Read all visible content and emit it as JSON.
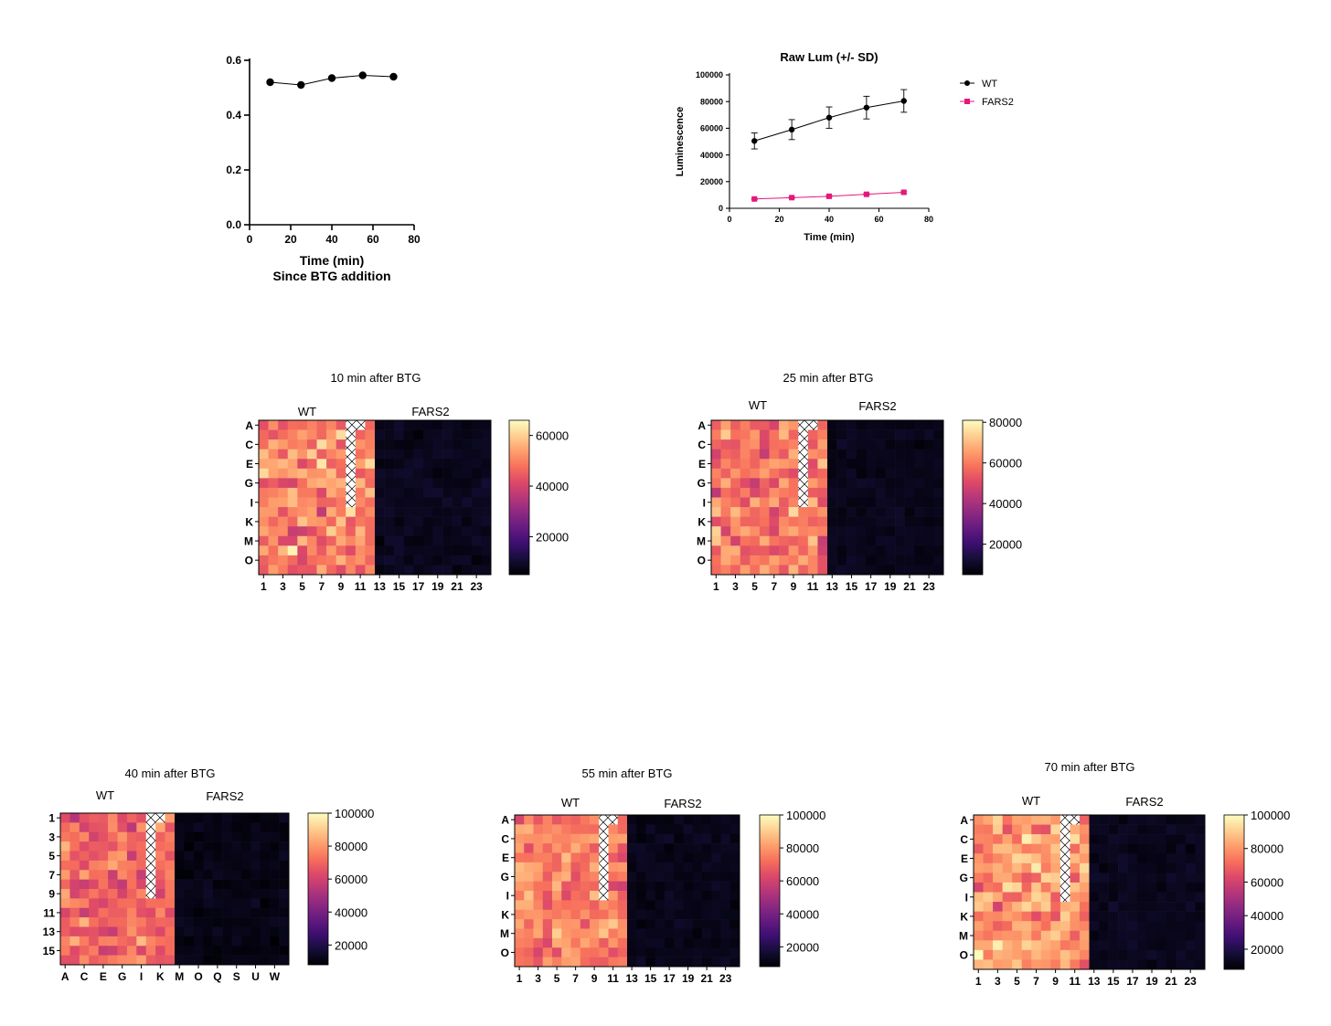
{
  "colors": {
    "wt": "#000000",
    "fars2": "#e6177a",
    "colormap": [
      "#000004",
      "#140e36",
      "#3b0f70",
      "#641a80",
      "#8c2981",
      "#b73779",
      "#de4968",
      "#f7705c",
      "#fe9f6d",
      "#fecf92",
      "#fcfdbf"
    ],
    "hatch": "#000000"
  },
  "chart_data": [
    {
      "id": "ratio",
      "type": "line",
      "title": "",
      "xlabel": "Time (min)",
      "xlabel2": "Since BTG addition",
      "ylabel": "",
      "xlim": [
        0,
        80
      ],
      "ylim": [
        0,
        0.6
      ],
      "xticks": [
        "0",
        "20",
        "40",
        "60",
        "80"
      ],
      "yticks": [
        "0.0",
        "0.2",
        "0.4",
        "0.6"
      ],
      "series": [
        {
          "x": [
            10,
            25,
            40,
            55,
            70
          ],
          "y": [
            0.52,
            0.51,
            0.535,
            0.545,
            0.54
          ]
        }
      ]
    },
    {
      "id": "rawlum",
      "type": "line",
      "title": "Raw Lum (+/- SD)",
      "xlabel": "Time (min)",
      "ylabel": "Luminescence",
      "xlim": [
        0,
        80
      ],
      "ylim": [
        0,
        100000
      ],
      "xticks": [
        "0",
        "20",
        "40",
        "60",
        "80"
      ],
      "yticks": [
        "0",
        "20000",
        "40000",
        "60000",
        "80000",
        "100000"
      ],
      "legend_position": "top-right",
      "series": [
        {
          "name": "WT",
          "marker": "circle",
          "x": [
            10,
            25,
            40,
            55,
            70
          ],
          "y": [
            50500,
            59000,
            68000,
            75500,
            80500
          ],
          "sd": [
            6000,
            7500,
            8000,
            8500,
            8500
          ]
        },
        {
          "name": "FARS2",
          "marker": "square",
          "x": [
            10,
            25,
            40,
            55,
            70
          ],
          "y": [
            7000,
            8000,
            9000,
            10500,
            12000
          ],
          "sd": [
            500,
            500,
            600,
            700,
            800
          ]
        }
      ]
    },
    {
      "id": "hm10",
      "type": "heatmap",
      "title": "10 min after BTG",
      "group_labels": [
        "WT",
        "FARS2"
      ],
      "row_labels": [
        "A",
        "C",
        "E",
        "G",
        "I",
        "K",
        "M",
        "O"
      ],
      "col_labels": [
        "1",
        "3",
        "5",
        "7",
        "9",
        "11",
        "13",
        "15",
        "17",
        "19",
        "21",
        "23"
      ],
      "colorbar_ticks": [
        "20000",
        "40000",
        "60000"
      ],
      "colorbar_range": [
        5000,
        66000
      ],
      "wt_mean": 50000,
      "wt_spread": 9000,
      "fars2_mean": 8000,
      "fars2_spread": 1500,
      "hatch_start_row": 0,
      "hatch_end_row": 9,
      "hatch_col": 9,
      "seed": 11
    },
    {
      "id": "hm25",
      "type": "heatmap",
      "title": "25 min after BTG",
      "group_labels": [
        "WT",
        "FARS2"
      ],
      "row_labels": [
        "A",
        "C",
        "E",
        "G",
        "I",
        "K",
        "M",
        "O"
      ],
      "col_labels": [
        "1",
        "3",
        "5",
        "7",
        "9",
        "11",
        "13",
        "15",
        "17",
        "19",
        "21",
        "23"
      ],
      "colorbar_ticks": [
        "20000",
        "40000",
        "60000",
        "80000"
      ],
      "colorbar_range": [
        5000,
        81000
      ],
      "wt_mean": 59000,
      "wt_spread": 10000,
      "fars2_mean": 8500,
      "fars2_spread": 1500,
      "hatch_start_row": 0,
      "hatch_end_row": 9,
      "hatch_col": 9,
      "seed": 23
    },
    {
      "id": "hm40",
      "type": "heatmap",
      "title": "40 min after BTG",
      "group_labels": [
        "WT",
        "FARS2"
      ],
      "row_labels": [
        "1",
        "3",
        "5",
        "7",
        "9",
        "11",
        "13",
        "15"
      ],
      "col_labels": [
        "A",
        "C",
        "E",
        "G",
        "I",
        "K",
        "M",
        "O",
        "Q",
        "S",
        "U",
        "W"
      ],
      "colorbar_ticks": [
        "20000",
        "40000",
        "60000",
        "80000",
        "100000"
      ],
      "colorbar_range": [
        8000,
        100000
      ],
      "wt_mean": 70000,
      "wt_spread": 11000,
      "fars2_mean": 11000,
      "fars2_spread": 2000,
      "hatch_start_row": 0,
      "hatch_end_row": 9,
      "hatch_col": 9,
      "seed": 37
    },
    {
      "id": "hm55",
      "type": "heatmap",
      "title": "55 min after BTG",
      "group_labels": [
        "WT",
        "FARS2"
      ],
      "row_labels": [
        "A",
        "C",
        "E",
        "G",
        "I",
        "K",
        "M",
        "O"
      ],
      "col_labels": [
        "1",
        "3",
        "5",
        "7",
        "9",
        "11",
        "13",
        "15",
        "17",
        "19",
        "21",
        "23"
      ],
      "colorbar_ticks": [
        "20000",
        "40000",
        "60000",
        "80000",
        "100000"
      ],
      "colorbar_range": [
        8000,
        100000
      ],
      "wt_mean": 76000,
      "wt_spread": 11000,
      "fars2_mean": 12000,
      "fars2_spread": 2000,
      "hatch_start_row": 0,
      "hatch_end_row": 9,
      "hatch_col": 9,
      "seed": 53
    },
    {
      "id": "hm70",
      "type": "heatmap",
      "title": "70 min after BTG",
      "group_labels": [
        "WT",
        "FARS2"
      ],
      "row_labels": [
        "A",
        "C",
        "E",
        "G",
        "I",
        "K",
        "M",
        "O"
      ],
      "col_labels": [
        "1",
        "3",
        "5",
        "7",
        "9",
        "11",
        "13",
        "15",
        "17",
        "19",
        "21",
        "23"
      ],
      "colorbar_ticks": [
        "20000",
        "40000",
        "60000",
        "80000",
        "100000"
      ],
      "colorbar_range": [
        8000,
        100000
      ],
      "wt_mean": 80000,
      "wt_spread": 12000,
      "fars2_mean": 12500,
      "fars2_spread": 2000,
      "hatch_start_row": 0,
      "hatch_end_row": 9,
      "hatch_col": 9,
      "seed": 71
    }
  ]
}
